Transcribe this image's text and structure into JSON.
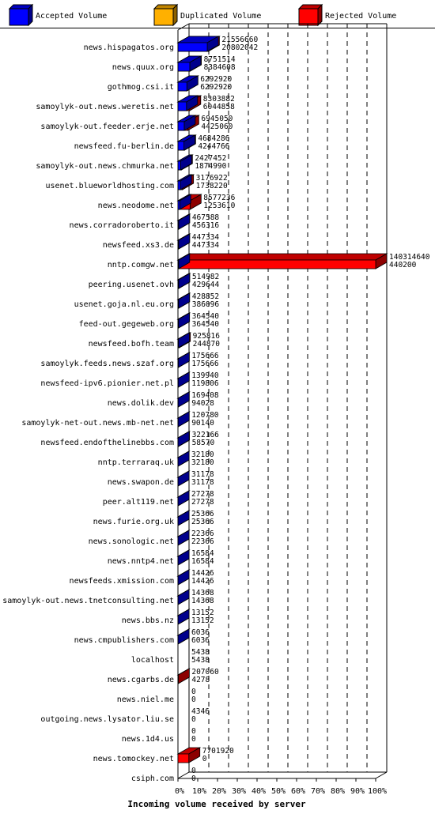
{
  "chart_data": {
    "type": "bar",
    "orientation": "horizontal",
    "title": "",
    "xlabel": "Incoming volume received by server",
    "ylabel": "",
    "x_ticks": [
      "0%",
      "10%",
      "20%",
      "30%",
      "40%",
      "50%",
      "60%",
      "70%",
      "80%",
      "90%",
      "100%"
    ],
    "xlim": [
      0,
      100
    ],
    "grid": "vertical dashed",
    "legend_position": "top",
    "legend": [
      {
        "name": "Accepted Volume",
        "color": "#0000ff"
      },
      {
        "name": "Duplicated Volume",
        "color": "#ffb000"
      },
      {
        "name": "Rejected Volume",
        "color": "#ff0000"
      }
    ],
    "scale_max": 140314640,
    "rows": [
      {
        "server": "news.hispagatos.org",
        "total": "21556660",
        "accepted": "20802042"
      },
      {
        "server": "news.quux.org",
        "total": "8751514",
        "accepted": "8384608"
      },
      {
        "server": "gothmog.csi.it",
        "total": "6292920",
        "accepted": "6292920"
      },
      {
        "server": "samoylyk-out.news.weretis.net",
        "total": "8303882",
        "accepted": "6044858"
      },
      {
        "server": "samoylyk-out.feeder.erje.net",
        "total": "6945050",
        "accepted": "4425060"
      },
      {
        "server": "newsfeed.fu-berlin.de",
        "total": "4684286",
        "accepted": "4244766"
      },
      {
        "server": "samoylyk-out.news.chmurka.net",
        "total": "2427452",
        "accepted": "1874990"
      },
      {
        "server": "usenet.blueworldhosting.com",
        "total": "3176922",
        "accepted": "1738220"
      },
      {
        "server": "news.neodome.net",
        "total": "8577236",
        "accepted": "1253610"
      },
      {
        "server": "news.corradoroberto.it",
        "total": "467588",
        "accepted": "456316"
      },
      {
        "server": "newsfeed.xs3.de",
        "total": "447334",
        "accepted": "447334"
      },
      {
        "server": "nntp.comgw.net",
        "total": "140314640",
        "accepted": "440200"
      },
      {
        "server": "peering.usenet.ovh",
        "total": "514982",
        "accepted": "429644"
      },
      {
        "server": "usenet.goja.nl.eu.org",
        "total": "428852",
        "accepted": "386096"
      },
      {
        "server": "feed-out.gegeweb.org",
        "total": "364540",
        "accepted": "364540"
      },
      {
        "server": "newsfeed.bofh.team",
        "total": "925816",
        "accepted": "244870"
      },
      {
        "server": "samoylyk.feeds.news.szaf.org",
        "total": "175666",
        "accepted": "175666"
      },
      {
        "server": "newsfeed-ipv6.pionier.net.pl",
        "total": "139940",
        "accepted": "119806"
      },
      {
        "server": "news.dolik.dev",
        "total": "169408",
        "accepted": "94028"
      },
      {
        "server": "samoylyk-net-out.news.mb-net.net",
        "total": "120780",
        "accepted": "90140"
      },
      {
        "server": "newsfeed.endofthelinebbs.com",
        "total": "322166",
        "accepted": "58570"
      },
      {
        "server": "nntp.terraraq.uk",
        "total": "32180",
        "accepted": "32180"
      },
      {
        "server": "news.swapon.de",
        "total": "31178",
        "accepted": "31178"
      },
      {
        "server": "peer.alt119.net",
        "total": "27278",
        "accepted": "27278"
      },
      {
        "server": "news.furie.org.uk",
        "total": "25366",
        "accepted": "25366"
      },
      {
        "server": "news.sonologic.net",
        "total": "22366",
        "accepted": "22366"
      },
      {
        "server": "news.nntp4.net",
        "total": "16584",
        "accepted": "16584"
      },
      {
        "server": "newsfeeds.xmission.com",
        "total": "14426",
        "accepted": "14426"
      },
      {
        "server": "samoylyk-out.news.tnetconsulting.net",
        "total": "14368",
        "accepted": "14368"
      },
      {
        "server": "news.bbs.nz",
        "total": "13152",
        "accepted": "13152"
      },
      {
        "server": "news.cmpublishers.com",
        "total": "6036",
        "accepted": "6036"
      },
      {
        "server": "localhost",
        "total": "5438",
        "accepted": "5438"
      },
      {
        "server": "news.cgarbs.de",
        "total": "207060",
        "accepted": "4278"
      },
      {
        "server": "news.niel.me",
        "total": "0",
        "accepted": "0"
      },
      {
        "server": "outgoing.news.lysator.liu.se",
        "total": "4346",
        "accepted": "0"
      },
      {
        "server": "news.1d4.us",
        "total": "0",
        "accepted": "0"
      },
      {
        "server": "news.tomockey.net",
        "total": "7701920",
        "accepted": "0"
      },
      {
        "server": "csiph.com",
        "total": "0",
        "accepted": "0"
      }
    ]
  }
}
